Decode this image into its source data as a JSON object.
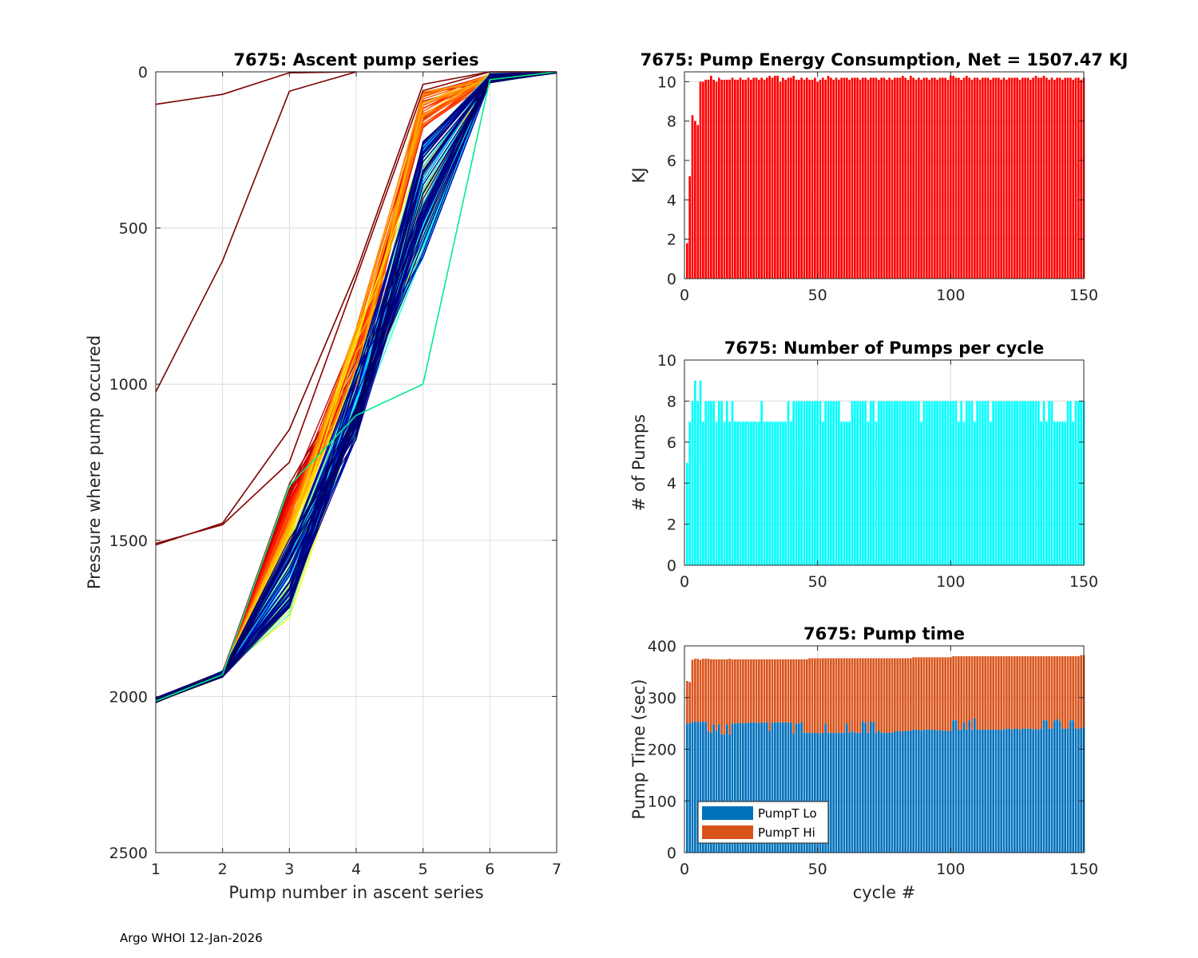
{
  "footer": "Argo WHOI 12-Jan-2026",
  "chart_data": [
    {
      "id": "ascent",
      "type": "line",
      "title": "7675: Ascent pump series",
      "xlabel": "Pump number in ascent series",
      "ylabel": "Pressure where pump occured",
      "xlim": [
        1,
        7
      ],
      "ylim": [
        0,
        2500
      ],
      "y_reversed": true,
      "grid": true,
      "xticks": [
        1,
        2,
        3,
        4,
        5,
        6,
        7
      ],
      "yticks": [
        0,
        500,
        1000,
        1500,
        2000,
        2500
      ],
      "colormap": "jet (early cycles dark red, late cycles dark blue)",
      "num_profiles": 150,
      "outlier_profiles": [
        {
          "pressures": [
            104,
            72,
            3,
            0
          ],
          "color": "#7a0000"
        },
        {
          "pressures": [
            1025,
            605,
            62,
            0
          ],
          "color": "#7a0000"
        },
        {
          "pressures": [
            1515,
            1445,
            1145,
            640,
            40,
            0,
            0
          ],
          "color": "#7a0000"
        },
        {
          "pressures": [
            1510,
            1450,
            1250,
            660,
            60,
            0,
            0
          ],
          "color": "#8a0000"
        },
        {
          "pressures": [
            2015,
            1930,
            1325,
            1100,
            1000,
            25,
            0
          ],
          "color": "#00ee88"
        }
      ],
      "typical_pressures_by_pump": {
        "1": 2012,
        "2": 1928,
        "3": 1600,
        "4": 1050,
        "5": 430,
        "6": 35,
        "7": 2
      }
    },
    {
      "id": "energy",
      "type": "bar",
      "title": "7675: Pump Energy Consumption,  Net = 1507.47 KJ",
      "xlabel": "",
      "ylabel": "KJ",
      "xlim": [
        0,
        150
      ],
      "ylim": [
        0,
        10.5
      ],
      "xticks": [
        0,
        50,
        100,
        150
      ],
      "yticks": [
        0,
        2,
        4,
        6,
        8,
        10
      ],
      "color": "#ff0000",
      "values": [
        1.8,
        5.2,
        8.3,
        8.0,
        7.8,
        10.0,
        10.0,
        10.1,
        10.1,
        10.3,
        10.1,
        10.0,
        10.2,
        10.1,
        10.1,
        10.1,
        10.1,
        10.2,
        10.1,
        10.1,
        10.2,
        10.1,
        10.1,
        10.2,
        10.1,
        10.2,
        10.2,
        10.1,
        10.2,
        10.1,
        10.2,
        10.3,
        10.2,
        10.3,
        10.3,
        10.0,
        10.2,
        10.1,
        10.2,
        10.2,
        10.3,
        10.1,
        10.1,
        10.2,
        10.1,
        10.2,
        10.1,
        10.1,
        10.2,
        10.0,
        10.1,
        10.2,
        10.1,
        10.3,
        10.2,
        10.1,
        10.2,
        10.1,
        10.2,
        10.2,
        10.2,
        10.1,
        10.2,
        10.2,
        10.2,
        10.1,
        10.2,
        10.2,
        10.1,
        10.2,
        10.2,
        10.2,
        10.1,
        10.2,
        10.2,
        10.1,
        10.2,
        10.1,
        10.2,
        10.2,
        10.2,
        10.3,
        10.2,
        10.1,
        10.3,
        10.2,
        10.1,
        10.2,
        10.1,
        10.2,
        10.2,
        10.1,
        10.2,
        10.2,
        10.1,
        10.2,
        10.2,
        10.2,
        10.1,
        10.3,
        10.3,
        10.2,
        10.2,
        10.1,
        10.2,
        10.3,
        10.2,
        10.1,
        10.2,
        10.2,
        10.1,
        10.2,
        10.2,
        10.2,
        10.1,
        10.2,
        10.2,
        10.2,
        10.1,
        10.2,
        10.1,
        10.2,
        10.2,
        10.2,
        10.2,
        10.1,
        10.2,
        10.2,
        10.2,
        10.1,
        10.2,
        10.3,
        10.2,
        10.2,
        10.3,
        10.2,
        10.1,
        10.2,
        10.1,
        10.2,
        10.2,
        10.1,
        10.2,
        10.2,
        10.2,
        10.1,
        10.2,
        10.2,
        10.1,
        10.2
      ]
    },
    {
      "id": "pumps",
      "type": "bar",
      "title": "7675: Number of Pumps per cycle",
      "xlabel": "",
      "ylabel": "# of Pumps",
      "xlim": [
        0,
        150
      ],
      "ylim": [
        0,
        10
      ],
      "xticks": [
        0,
        50,
        100,
        150
      ],
      "yticks": [
        0,
        2,
        4,
        6,
        8,
        10
      ],
      "color": "#00ffff",
      "values": [
        5,
        7,
        8,
        9,
        8,
        9,
        7,
        8,
        8,
        8,
        8,
        7,
        8,
        8,
        7,
        8,
        7,
        8,
        7,
        7,
        7,
        7,
        7,
        7,
        7,
        7,
        7,
        7,
        8,
        7,
        7,
        7,
        7,
        7,
        7,
        7,
        7,
        7,
        8,
        7,
        8,
        8,
        8,
        8,
        8,
        8,
        8,
        8,
        8,
        8,
        8,
        7,
        8,
        8,
        8,
        8,
        8,
        8,
        7,
        7,
        7,
        7,
        8,
        8,
        8,
        8,
        8,
        8,
        7,
        8,
        8,
        7,
        8,
        8,
        8,
        8,
        8,
        8,
        8,
        8,
        8,
        8,
        8,
        8,
        8,
        8,
        8,
        8,
        7,
        8,
        8,
        8,
        8,
        8,
        8,
        8,
        8,
        8,
        8,
        8,
        8,
        8,
        7,
        8,
        7,
        8,
        8,
        8,
        7,
        8,
        8,
        8,
        8,
        8,
        7,
        8,
        8,
        8,
        8,
        8,
        8,
        8,
        8,
        8,
        8,
        8,
        8,
        8,
        8,
        8,
        8,
        8,
        8,
        7,
        8,
        7,
        8,
        8,
        7,
        7,
        7,
        7,
        7,
        8,
        8,
        7,
        8,
        8,
        8,
        8
      ]
    },
    {
      "id": "pumptime",
      "type": "bar",
      "stacked": true,
      "title": "7675: Pump time",
      "xlabel": "cycle #",
      "ylabel": "Pump Time (sec)",
      "xlim": [
        0,
        150
      ],
      "ylim": [
        0,
        400
      ],
      "xticks": [
        0,
        50,
        100,
        150
      ],
      "yticks": [
        0,
        100,
        200,
        300,
        400
      ],
      "legend": {
        "location": "bottom-left",
        "entries": [
          "PumpT Lo",
          "PumpT Hi"
        ]
      },
      "series": [
        {
          "name": "PumpT Lo",
          "color": "#0072bd",
          "values": [
            250,
            250,
            253,
            253,
            253,
            253,
            253,
            253,
            235,
            232,
            248,
            236,
            248,
            229,
            229,
            248,
            229,
            250,
            250,
            250,
            252,
            250,
            250,
            252,
            252,
            252,
            252,
            250,
            252,
            252,
            252,
            236,
            252,
            252,
            252,
            252,
            252,
            252,
            252,
            252,
            230,
            250,
            250,
            252,
            232,
            232,
            232,
            232,
            232,
            232,
            230,
            232,
            250,
            232,
            232,
            232,
            232,
            232,
            232,
            232,
            250,
            232,
            236,
            232,
            232,
            232,
            254,
            252,
            232,
            254,
            252,
            232,
            236,
            232,
            232,
            232,
            232,
            232,
            234,
            236,
            234,
            234,
            236,
            236,
            236,
            238,
            238,
            238,
            236,
            238,
            238,
            238,
            238,
            238,
            236,
            238,
            236,
            236,
            236,
            236,
            256,
            256,
            238,
            238,
            252,
            238,
            256,
            238,
            260,
            238,
            238,
            238,
            238,
            238,
            238,
            238,
            238,
            238,
            238,
            238,
            240,
            240,
            238,
            240,
            240,
            238,
            240,
            240,
            240,
            240,
            238,
            240,
            238,
            240,
            256,
            256,
            240,
            240,
            256,
            258,
            254,
            240,
            240,
            240,
            256,
            256,
            240,
            240,
            242,
            242
          ]
        },
        {
          "name": "PumpT Hi",
          "color": "#d95319",
          "values": [
            82,
            80,
            120,
            122,
            122,
            120,
            122,
            122,
            140,
            142,
            126,
            138,
            126,
            145,
            145,
            126,
            146,
            124,
            124,
            124,
            122,
            124,
            124,
            122,
            122,
            122,
            122,
            124,
            122,
            122,
            122,
            138,
            122,
            122,
            122,
            122,
            122,
            122,
            122,
            122,
            144,
            124,
            124,
            122,
            142,
            142,
            144,
            144,
            144,
            144,
            146,
            144,
            126,
            144,
            144,
            144,
            144,
            144,
            144,
            144,
            126,
            144,
            140,
            144,
            144,
            144,
            122,
            124,
            144,
            122,
            124,
            144,
            140,
            144,
            144,
            144,
            144,
            144,
            142,
            140,
            142,
            142,
            140,
            140,
            140,
            140,
            140,
            140,
            142,
            140,
            140,
            140,
            140,
            140,
            142,
            140,
            142,
            142,
            142,
            142,
            124,
            124,
            142,
            142,
            128,
            142,
            124,
            142,
            120,
            142,
            142,
            142,
            142,
            142,
            142,
            142,
            142,
            142,
            142,
            142,
            140,
            140,
            142,
            140,
            140,
            142,
            140,
            140,
            140,
            140,
            142,
            140,
            142,
            140,
            124,
            124,
            140,
            140,
            124,
            122,
            126,
            140,
            140,
            140,
            124,
            124,
            140,
            140,
            140,
            140
          ]
        }
      ]
    }
  ]
}
